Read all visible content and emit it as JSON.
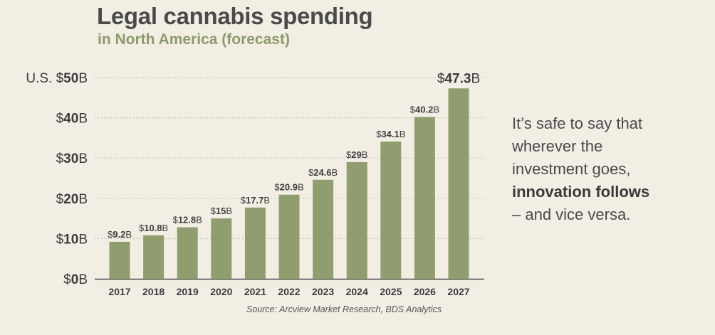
{
  "header": {
    "title": "Legal cannabis spending",
    "subtitle": "in North America (forecast)"
  },
  "side_note": {
    "line1": "It’s safe to say that",
    "line2": "wherever the",
    "line3": "investment goes,",
    "line4_bold": "innovation follows",
    "line5": "– and vice versa."
  },
  "source": "Source:  Arcview Market Research, BDS Analytics",
  "colors": {
    "bar": "#909e6f",
    "gridline": "#b9b5ab",
    "text": "#3c3c3c",
    "accent_subtitle": "#8c9a6b"
  },
  "chart_data": {
    "type": "bar",
    "categories": [
      "2017",
      "2018",
      "2019",
      "2020",
      "2021",
      "2022",
      "2023",
      "2024",
      "2025",
      "2026",
      "2027"
    ],
    "values": [
      9.2,
      10.8,
      12.8,
      15,
      17.7,
      20.9,
      24.6,
      29,
      34.1,
      40.2,
      47.3
    ],
    "value_labels": [
      "9.2",
      "10.8",
      "12.8",
      "15",
      "17.7",
      "20.9",
      "24.6",
      "29",
      "34.1",
      "40.2",
      "47.3"
    ],
    "label_prefix": "$",
    "label_suffix": "B",
    "highlight_last": true,
    "ylim": [
      0,
      50
    ],
    "yticks": [
      {
        "value": 0,
        "prefix": "$",
        "number": "0",
        "suffix": "B"
      },
      {
        "value": 10,
        "prefix": "$",
        "number": "10",
        "suffix": "B"
      },
      {
        "value": 20,
        "prefix": "$",
        "number": "20",
        "suffix": "B"
      },
      {
        "value": 30,
        "prefix": "$",
        "number": "30",
        "suffix": "B"
      },
      {
        "value": 40,
        "prefix": "$",
        "number": "40",
        "suffix": "B"
      },
      {
        "value": 50,
        "prefix": "U.S. $",
        "number": "50",
        "suffix": "B"
      }
    ],
    "grid": true,
    "grid_style": "dotted",
    "legend": "none"
  }
}
